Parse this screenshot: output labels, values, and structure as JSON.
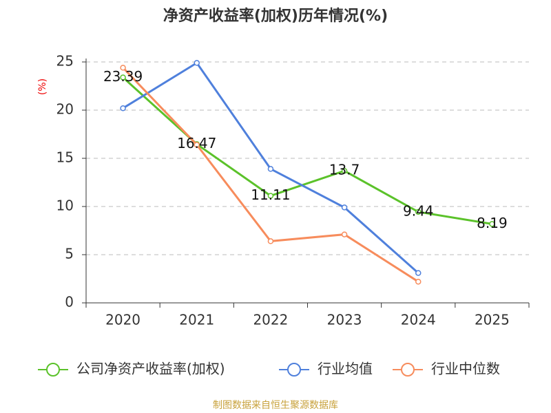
{
  "chart_data": {
    "type": "line",
    "title": "净资产收益率(加权)历年情况(%)",
    "y_label": "(%)",
    "source": "制图数据来自恒生聚源数据库",
    "categories": [
      "2020",
      "2021",
      "2022",
      "2023",
      "2024",
      "2025"
    ],
    "series": [
      {
        "name": "公司净资产收益率(加权)",
        "color": "#5bc22a",
        "data_labels": true,
        "values": [
          23.39,
          16.47,
          11.11,
          13.7,
          9.44,
          8.19
        ]
      },
      {
        "name": "行业均值",
        "color": "#4f80dc",
        "values": [
          20.2,
          24.9,
          13.9,
          9.9,
          3.1,
          null
        ]
      },
      {
        "name": "行业中位数",
        "color": "#f78c5c",
        "values": [
          24.4,
          16.4,
          6.4,
          7.1,
          2.2,
          null
        ]
      }
    ],
    "ylim": [
      0,
      25
    ],
    "yticks": [
      0,
      5,
      10,
      15,
      20,
      25
    ],
    "grid": true
  }
}
